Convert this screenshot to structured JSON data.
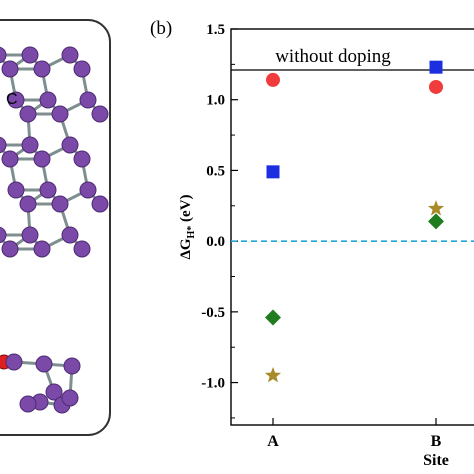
{
  "left_panel": {
    "atom_label": "C",
    "colors": {
      "atom": "#7b4aa8",
      "atom_dark": "#4e2a73",
      "bond": "#7f8f8f",
      "dopant": "#e02020",
      "frame": "#333333"
    }
  },
  "chart_data": {
    "type": "scatter",
    "panel_label": "(b)",
    "title": "",
    "xlabel": "Site",
    "ylabel_main": "ΔG",
    "ylabel_sub": "H*",
    "ylabel_unit": " (eV)",
    "categories": [
      "A",
      "B"
    ],
    "ylim": [
      -1.3,
      1.5
    ],
    "yticks": [
      {
        "value": 1.5,
        "label": "1.5"
      },
      {
        "value": 1.0,
        "label": "1.0"
      },
      {
        "value": 0.5,
        "label": "0.5"
      },
      {
        "value": 0.0,
        "label": "0.0"
      },
      {
        "value": -0.5,
        "label": "-0.5"
      },
      {
        "value": -1.0,
        "label": "-1.0"
      }
    ],
    "reference": {
      "label": "without doping",
      "value": 1.21
    },
    "zero_line": {
      "value": 0.0,
      "style": "dashed",
      "color": "#1ea7d6"
    },
    "series": [
      {
        "marker": "circle",
        "color": "#f03c3c",
        "values": [
          1.14,
          1.09
        ]
      },
      {
        "marker": "square",
        "color": "#1b2ee0",
        "values": [
          0.49,
          1.23
        ]
      },
      {
        "marker": "diamond",
        "color": "#1f7d1f",
        "values": [
          -0.54,
          0.14
        ]
      },
      {
        "marker": "star",
        "color": "#a88a28",
        "values": [
          -0.95,
          0.23
        ]
      }
    ]
  }
}
